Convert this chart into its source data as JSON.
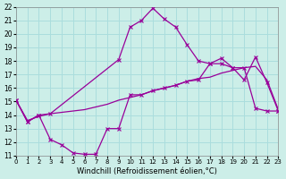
{
  "xlabel": "Windchill (Refroidissement éolien,°C)",
  "bg_color": "#cceee8",
  "grid_color": "#aadddd",
  "line_color": "#990099",
  "x_ticks": [
    0,
    1,
    2,
    3,
    4,
    5,
    6,
    7,
    8,
    9,
    10,
    11,
    12,
    13,
    14,
    15,
    16,
    17,
    18,
    19,
    20,
    21,
    22,
    23
  ],
  "y_ticks": [
    11,
    12,
    13,
    14,
    15,
    16,
    17,
    18,
    19,
    20,
    21,
    22
  ],
  "xlim": [
    0,
    23
  ],
  "ylim": [
    11,
    22
  ],
  "line1_x": [
    0,
    1,
    2,
    3,
    9,
    10,
    11,
    12,
    13,
    14,
    15,
    16,
    17,
    18,
    19,
    20,
    21,
    22,
    23
  ],
  "line1_y": [
    15.1,
    13.5,
    14.0,
    14.1,
    18.1,
    20.5,
    21.0,
    21.9,
    21.1,
    20.5,
    19.2,
    18.0,
    17.8,
    18.2,
    17.5,
    16.6,
    18.3,
    16.4,
    14.3
  ],
  "line2_x": [
    0,
    1,
    2,
    3,
    4,
    5,
    6,
    7,
    8,
    9,
    10,
    11,
    12,
    13,
    14,
    15,
    16,
    17,
    18,
    19,
    20,
    21,
    22,
    23
  ],
  "line2_y": [
    15.1,
    13.6,
    13.9,
    14.1,
    14.2,
    14.3,
    14.4,
    14.6,
    14.8,
    15.1,
    15.3,
    15.5,
    15.8,
    16.0,
    16.2,
    16.5,
    16.7,
    16.8,
    17.1,
    17.3,
    17.5,
    17.6,
    16.6,
    14.4
  ],
  "line3_x": [
    0,
    1,
    2,
    3,
    4,
    5,
    6,
    7,
    8,
    9,
    10,
    11,
    12,
    13,
    14,
    15,
    16,
    17,
    18,
    19,
    20,
    21,
    22,
    23
  ],
  "line3_y": [
    15.1,
    13.5,
    14.0,
    12.2,
    11.8,
    11.2,
    11.1,
    11.1,
    13.0,
    13.0,
    15.5,
    15.5,
    15.8,
    16.0,
    16.2,
    16.5,
    16.6,
    17.8,
    17.8,
    17.5,
    17.5,
    14.5,
    14.3,
    14.3
  ]
}
